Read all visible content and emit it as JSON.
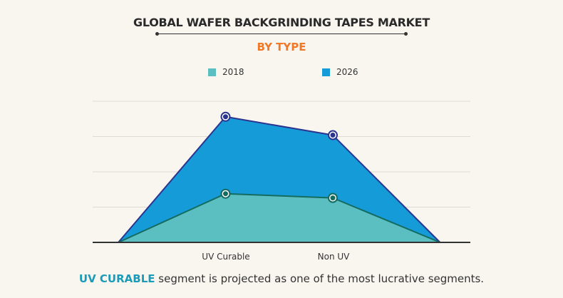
{
  "chart_data": {
    "type": "area",
    "title": "GLOBAL WAFER BACKGRINDING TAPES MARKET",
    "subtitle": "BY TYPE",
    "categories": [
      "",
      "UV Curable",
      "Non UV",
      ""
    ],
    "ylim": [
      0,
      4
    ],
    "grid": true,
    "legend_placement": "top",
    "series": [
      {
        "name": "2026",
        "values": [
          0,
          3.56,
          3.04,
          0
        ],
        "color": "#159cd8",
        "line": "#2b3590"
      },
      {
        "name": "2018",
        "values": [
          0,
          1.38,
          1.26,
          0
        ],
        "color": "#5bbfc1",
        "line": "#146b60"
      }
    ]
  },
  "footer": {
    "highlight": "UV CURABLE",
    "text": " segment is projected as one of the most lucrative segments."
  },
  "colors": {
    "accent": "#f07826",
    "highlight": "#1a9bb7"
  }
}
